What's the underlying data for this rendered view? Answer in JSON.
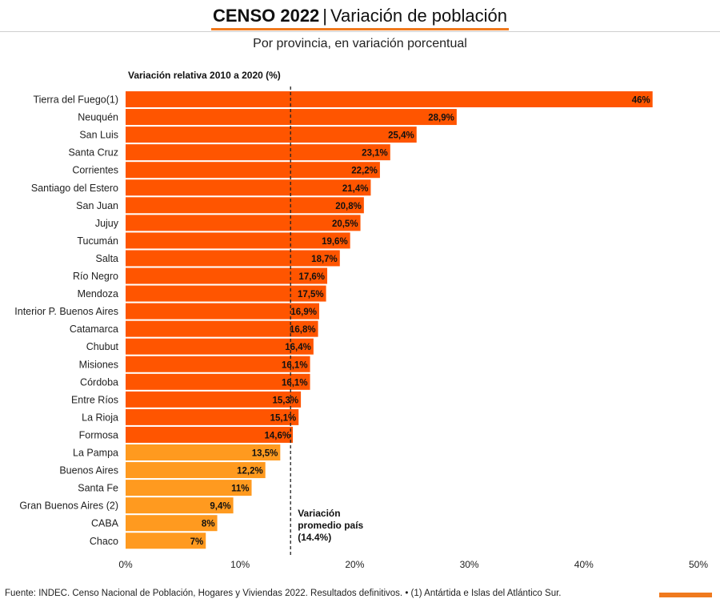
{
  "header": {
    "title_bold": "CENSO 2022",
    "title_sep": "|",
    "title_rest": "Variación de población",
    "subtitle": "Por provincia, en variación porcentual",
    "accent_color": "#f07a1e"
  },
  "footer": {
    "source": "Fuente: INDEC. Censo Nacional de Población, Hogares y Viviendas 2022. Resultados definitivos. • (1) Antártida e Islas del Atlántico Sur.",
    "logo_color": "#f07a1e"
  },
  "chart_data": {
    "type": "bar",
    "orientation": "horizontal",
    "title": "Variación relativa 2010 a 2020 (%)",
    "categories": [
      "Tierra del Fuego(1)",
      "Neuquén",
      "San Luis",
      "Santa Cruz",
      "Corrientes",
      "Santiago del Estero",
      "San Juan",
      "Jujuy",
      "Tucumán",
      "Salta",
      "Río Negro",
      "Mendoza",
      "Interior P. Buenos Aires",
      "Catamarca",
      "Chubut",
      "Misiones",
      "Córdoba",
      "Entre Ríos",
      "La Rioja",
      "Formosa",
      "La Pampa",
      "Buenos Aires",
      "Santa Fe",
      "Gran Buenos Aires (2)",
      "CABA",
      "Chaco"
    ],
    "values": [
      46,
      28.9,
      25.4,
      23.1,
      22.2,
      21.4,
      20.8,
      20.5,
      19.6,
      18.7,
      17.6,
      17.5,
      16.9,
      16.8,
      16.4,
      16.1,
      16.1,
      15.3,
      15.1,
      14.6,
      13.5,
      12.2,
      11,
      9.4,
      8,
      7
    ],
    "value_labels": [
      "46%",
      "28,9%",
      "25,4%",
      "23,1%",
      "22,2%",
      "21,4%",
      "20,8%",
      "20,5%",
      "19,6%",
      "18,7%",
      "17,6%",
      "17,5%",
      "16,9%",
      "16,8%",
      "16,4%",
      "16,1%",
      "16,1%",
      "15,3%",
      "15,1%",
      "14,6%",
      "13,5%",
      "12,2%",
      "11%",
      "9,4%",
      "8%",
      "7%"
    ],
    "xlim": [
      0,
      50
    ],
    "xticks": [
      0,
      10,
      20,
      30,
      40,
      50
    ],
    "xtick_labels": [
      "0%",
      "10%",
      "20%",
      "30%",
      "40%",
      "50%"
    ],
    "colors": {
      "above_average": "#ff5500",
      "below_average": "#ff9a1f"
    },
    "reference_line": {
      "value": 14.4,
      "style": "dashed",
      "label_lines": [
        "Variación",
        "promedio país",
        "(14.4%)"
      ]
    },
    "grid": false
  }
}
